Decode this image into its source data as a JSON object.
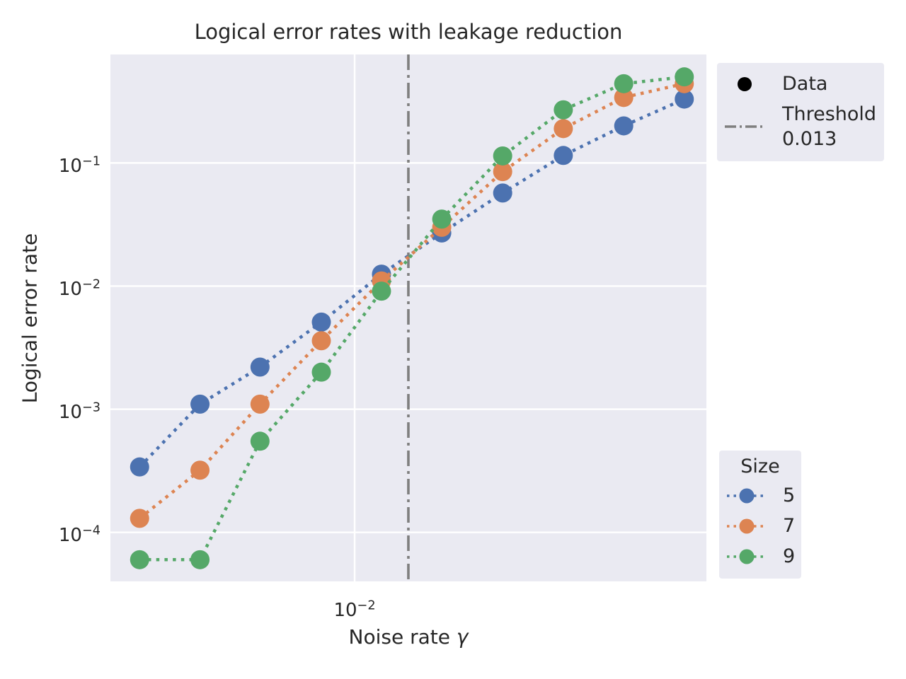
{
  "title": "Logical error rates with leakage reduction",
  "axes": {
    "xlabel": "Noise rate",
    "xlabel_symbol": "γ",
    "ylabel": "Logical error rate"
  },
  "colors": {
    "figure_background": "#ffffff",
    "panel_background": "#EAEAF2",
    "grid": "#ffffff",
    "text": "#262626",
    "threshold": "#7f7f7f",
    "data_marker": "#000000"
  },
  "legends": {
    "data_threshold": {
      "items": [
        {
          "icon": "data-dot",
          "color": "#000000",
          "lines": [
            "Data"
          ]
        },
        {
          "icon": "threshold-line",
          "color": "#7f7f7f",
          "lines": [
            "Threshold",
            "0.013"
          ]
        }
      ]
    },
    "size": {
      "title": "Size",
      "items": [
        {
          "label": "5",
          "color": "#4C72B0"
        },
        {
          "label": "7",
          "color": "#DD8452"
        },
        {
          "label": "9",
          "color": "#55A868"
        }
      ]
    }
  },
  "chart_data": {
    "type": "line",
    "title": "Logical error rates with leakage reduction",
    "xlabel": "Noise rate γ",
    "ylabel": "Logical error rate",
    "xscale": "log",
    "yscale": "log",
    "grid": true,
    "line_style": "dotted",
    "marker": "circle",
    "xlim": [
      0.003035,
      0.0557
    ],
    "ylim": [
      4e-05,
      0.76
    ],
    "x_tick_exponents": [
      -2
    ],
    "y_tick_exponents": [
      -1,
      -2,
      -3,
      -4
    ],
    "x": [
      0.0035,
      0.0047,
      0.0063,
      0.0085,
      0.0114,
      0.0153,
      0.0206,
      0.0277,
      0.0372,
      0.05
    ],
    "series": [
      {
        "name": "5",
        "color": "#4C72B0",
        "values": [
          0.00034,
          0.0011,
          0.0022,
          0.0051,
          0.0125,
          0.027,
          0.057,
          0.115,
          0.2,
          0.33
        ]
      },
      {
        "name": "7",
        "color": "#DD8452",
        "values": [
          0.00013,
          0.00032,
          0.0011,
          0.0036,
          0.011,
          0.03,
          0.085,
          0.19,
          0.34,
          0.44
        ]
      },
      {
        "name": "9",
        "color": "#55A868",
        "values": [
          6e-05,
          6e-05,
          0.00055,
          0.002,
          0.0091,
          0.035,
          0.114,
          0.27,
          0.44,
          0.5
        ]
      }
    ],
    "threshold": {
      "value": 0.013,
      "color": "#7f7f7f",
      "style": "dashdot",
      "label": "Threshold 0.013"
    },
    "legend_position": {
      "data_threshold": "upper right outside",
      "size": "lower right outside"
    }
  }
}
